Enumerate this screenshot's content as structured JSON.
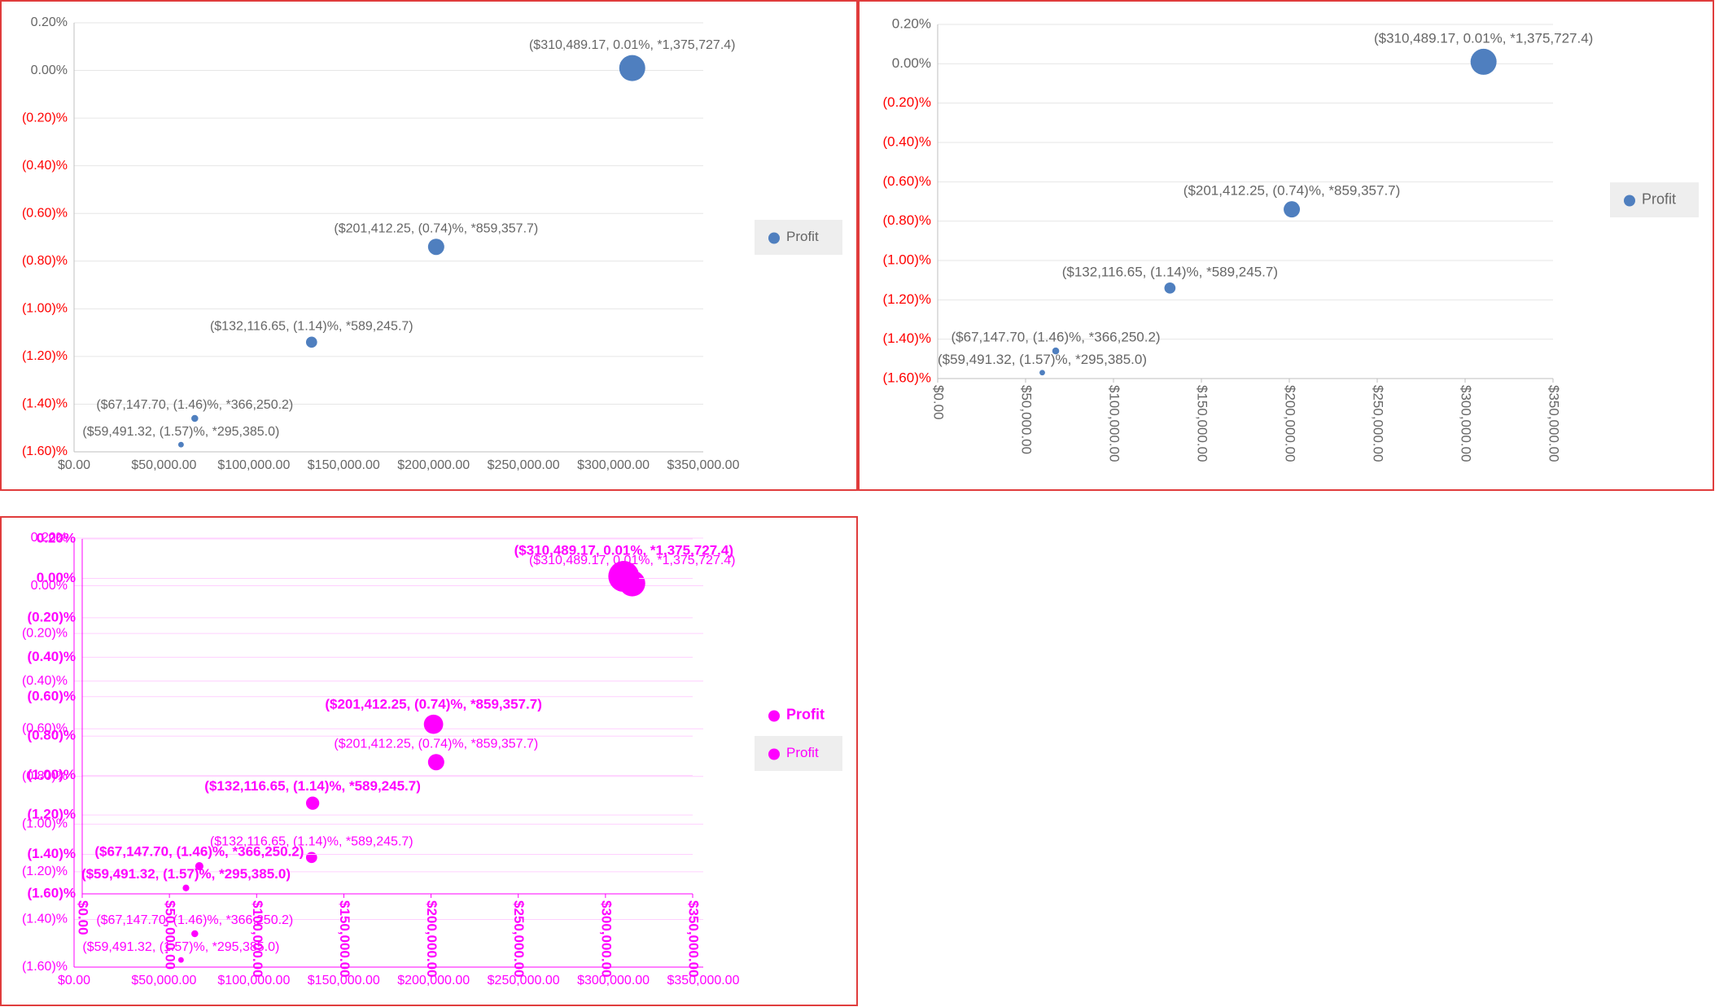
{
  "chart_data": [
    {
      "type": "bubble",
      "series": [
        {
          "name": "Profit",
          "color": "#4f7fbf",
          "x": [
            59491.32,
            67147.7,
            132116.65,
            201412.25,
            310489.17
          ],
          "values": [
            -1.57,
            -1.46,
            -1.14,
            -0.74,
            0.01
          ],
          "sizes": [
            295385.0,
            366250.2,
            589245.7,
            859357.7,
            1375727.4
          ],
          "value_labels": [
            "($59,491.32, (1.57)%, *295,385.0)",
            "($67,147.70, (1.46)%, *366,250.2)",
            "($132,116.65, (1.14)%, *589,245.7)",
            "($201,412.25, (0.74)%, *859,357.7)",
            "($310,489.17, 0.01%, *1,375,727.4)"
          ]
        }
      ],
      "xlim": [
        0,
        350000
      ],
      "xticks": [
        {
          "value": 0,
          "label": "$0.00"
        },
        {
          "value": 50000,
          "label": "$50,000.00"
        },
        {
          "value": 100000,
          "label": "$100,000.00"
        },
        {
          "value": 150000,
          "label": "$150,000.00"
        },
        {
          "value": 200000,
          "label": "$200,000.00"
        },
        {
          "value": 250000,
          "label": "$250,000.00"
        },
        {
          "value": 300000,
          "label": "$300,000.00"
        },
        {
          "value": 350000,
          "label": "$350,000.00"
        }
      ],
      "ylim": [
        -1.6,
        0.2
      ],
      "yticks": [
        {
          "value": 0.2,
          "label": "0.20%"
        },
        {
          "value": 0,
          "label": "0.00%"
        },
        {
          "value": -0.2,
          "label": "(0.20)%"
        },
        {
          "value": -0.4,
          "label": "(0.40)%"
        },
        {
          "value": -0.6,
          "label": "(0.60)%"
        },
        {
          "value": -0.8,
          "label": "(0.80)%"
        },
        {
          "value": -1.0,
          "label": "(1.00)%"
        },
        {
          "value": -1.2,
          "label": "(1.20)%"
        },
        {
          "value": -1.4,
          "label": "(1.40)%"
        },
        {
          "value": -1.6,
          "label": "(1.60)%"
        }
      ],
      "grid": true,
      "legend": "right",
      "text_color": "#666666",
      "negative_color": "#ff0000",
      "x_label_rotation": 0
    },
    {
      "type": "bubble",
      "series": [
        {
          "name": "Profit",
          "color": "#4f7fbf",
          "x": [
            59491.32,
            67147.7,
            132116.65,
            201412.25,
            310489.17
          ],
          "values": [
            -1.57,
            -1.46,
            -1.14,
            -0.74,
            0.01
          ],
          "sizes": [
            295385.0,
            366250.2,
            589245.7,
            859357.7,
            1375727.4
          ],
          "value_labels": [
            "($59,491.32, (1.57)%, *295,385.0)",
            "($67,147.70, (1.46)%, *366,250.2)",
            "($132,116.65, (1.14)%, *589,245.7)",
            "($201,412.25, (0.74)%, *859,357.7)",
            "($310,489.17, 0.01%, *1,375,727.4)"
          ]
        }
      ],
      "xlim": [
        0,
        350000
      ],
      "xticks": [
        {
          "value": 0,
          "label": "$0.00"
        },
        {
          "value": 50000,
          "label": "$50,000.00"
        },
        {
          "value": 100000,
          "label": "$100,000.00"
        },
        {
          "value": 150000,
          "label": "$150,000.00"
        },
        {
          "value": 200000,
          "label": "$200,000.00"
        },
        {
          "value": 250000,
          "label": "$250,000.00"
        },
        {
          "value": 300000,
          "label": "$300,000.00"
        },
        {
          "value": 350000,
          "label": "$350,000.00"
        }
      ],
      "ylim": [
        -1.6,
        0.2
      ],
      "yticks": [
        {
          "value": 0.2,
          "label": "0.20%"
        },
        {
          "value": 0,
          "label": "0.00%"
        },
        {
          "value": -0.2,
          "label": "(0.20)%"
        },
        {
          "value": -0.4,
          "label": "(0.40)%"
        },
        {
          "value": -0.6,
          "label": "(0.60)%"
        },
        {
          "value": -0.8,
          "label": "(0.80)%"
        },
        {
          "value": -1.0,
          "label": "(1.00)%"
        },
        {
          "value": -1.2,
          "label": "(1.20)%"
        },
        {
          "value": -1.4,
          "label": "(1.40)%"
        },
        {
          "value": -1.6,
          "label": "(1.60)%"
        }
      ],
      "grid": true,
      "legend": "right",
      "text_color": "#666666",
      "negative_color": "#ff0000",
      "x_label_rotation": 90
    },
    {
      "type": "bubble",
      "series": [
        {
          "name": "Profit",
          "color": "#ff00ff",
          "x": [
            59491.32,
            67147.7,
            132116.65,
            201412.25,
            310489.17
          ],
          "values": [
            -1.57,
            -1.46,
            -1.14,
            -0.74,
            0.01
          ],
          "sizes": [
            295385.0,
            366250.2,
            589245.7,
            859357.7,
            1375727.4
          ],
          "value_labels": [
            "($59,491.32, (1.57)%, *295,385.0)",
            "($67,147.70, (1.46)%, *366,250.2)",
            "($132,116.65, (1.14)%, *589,245.7)",
            "($201,412.25, (0.74)%, *859,357.7)",
            "($310,489.17, 0.01%, *1,375,727.4)"
          ]
        }
      ],
      "xlim": [
        0,
        350000
      ],
      "xticks": [
        {
          "value": 0,
          "label": "$0.00"
        },
        {
          "value": 50000,
          "label": "$50,000.00"
        },
        {
          "value": 100000,
          "label": "$100,000.00"
        },
        {
          "value": 150000,
          "label": "$150,000.00"
        },
        {
          "value": 200000,
          "label": "$200,000.00"
        },
        {
          "value": 250000,
          "label": "$250,000.00"
        },
        {
          "value": 300000,
          "label": "$300,000.00"
        },
        {
          "value": 350000,
          "label": "$350,000.00"
        }
      ],
      "ylim": [
        -1.6,
        0.2
      ],
      "yticks": [
        {
          "value": 0.2,
          "label": "0.20%"
        },
        {
          "value": 0,
          "label": "0.00%"
        },
        {
          "value": -0.2,
          "label": "(0.20)%"
        },
        {
          "value": -0.4,
          "label": "(0.40)%"
        },
        {
          "value": -0.6,
          "label": "(0.60)%"
        },
        {
          "value": -0.8,
          "label": "(0.80)%"
        },
        {
          "value": -1.0,
          "label": "(1.00)%"
        },
        {
          "value": -1.2,
          "label": "(1.20)%"
        },
        {
          "value": -1.4,
          "label": "(1.40)%"
        },
        {
          "value": -1.6,
          "label": "(1.60)%"
        }
      ],
      "grid": true,
      "legend": "right",
      "text_color": "#ff00ff",
      "negative_color": "#ff00ff",
      "x_label_rotation": 0
    },
    {
      "type": "bubble",
      "series": [
        {
          "name": "Profit",
          "color": "#ff00ff",
          "x": [
            59491.32,
            67147.7,
            132116.65,
            201412.25,
            310489.17
          ],
          "values": [
            -1.57,
            -1.46,
            -1.14,
            -0.74,
            0.01
          ],
          "sizes": [
            295385.0,
            366250.2,
            589245.7,
            859357.7,
            1375727.4
          ],
          "value_labels": [
            "($59,491.32, (1.57)%, *295,385.0)",
            "($67,147.70, (1.46)%, *366,250.2)",
            "($132,116.65, (1.14)%, *589,245.7)",
            "($201,412.25, (0.74)%, *859,357.7)",
            "($310,489.17, 0.01%, *1,375,727.4)"
          ]
        }
      ],
      "xlim": [
        0,
        350000
      ],
      "xticks": [
        {
          "value": 0,
          "label": "$0.00"
        },
        {
          "value": 50000,
          "label": "$50,000.00"
        },
        {
          "value": 100000,
          "label": "$100,000.00"
        },
        {
          "value": 150000,
          "label": "$150,000.00"
        },
        {
          "value": 200000,
          "label": "$200,000.00"
        },
        {
          "value": 250000,
          "label": "$250,000.00"
        },
        {
          "value": 300000,
          "label": "$300,000.00"
        },
        {
          "value": 350000,
          "label": "$350,000.00"
        }
      ],
      "ylim": [
        -1.6,
        0.2
      ],
      "yticks": [
        {
          "value": 0.2,
          "label": "0.20%"
        },
        {
          "value": 0,
          "label": "0.00%"
        },
        {
          "value": -0.2,
          "label": "(0.20)%"
        },
        {
          "value": -0.4,
          "label": "(0.40)%"
        },
        {
          "value": -0.6,
          "label": "(0.60)%"
        },
        {
          "value": -0.8,
          "label": "(0.80)%"
        },
        {
          "value": -1.0,
          "label": "(1.00)%"
        },
        {
          "value": -1.2,
          "label": "(1.20)%"
        },
        {
          "value": -1.4,
          "label": "(1.40)%"
        },
        {
          "value": -1.6,
          "label": "(1.60)%"
        }
      ],
      "grid": true,
      "legend": "right",
      "text_color": "#ff00ff",
      "negative_color": "#ff00ff",
      "x_label_rotation": 90
    }
  ]
}
